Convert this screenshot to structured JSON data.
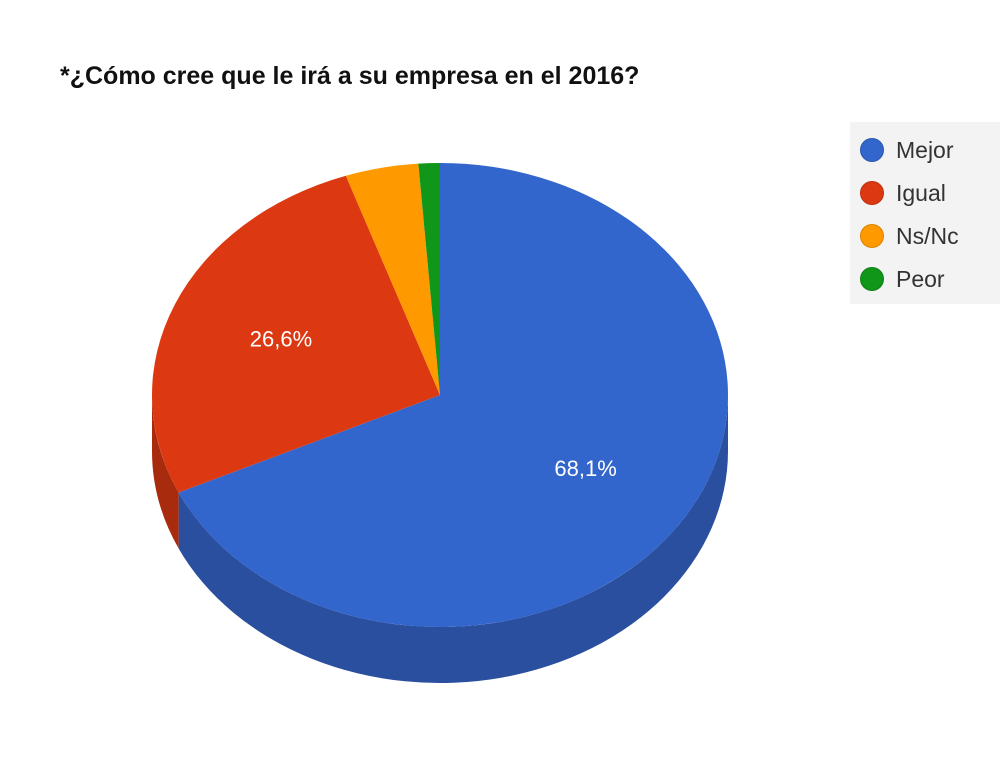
{
  "chart_data": {
    "type": "pie",
    "title": "*¿Cómo cree que le irá a su empresa en el 2016?",
    "categories": [
      "Mejor",
      "Igual",
      "Ns/Nc",
      "Peor"
    ],
    "values": [
      68.1,
      26.6,
      4.1,
      1.2
    ],
    "data_labels": [
      "68,1%",
      "26,6%",
      "",
      ""
    ],
    "colors": [
      "#3366cc",
      "#dc3912",
      "#ff9900",
      "#109618"
    ],
    "side_colors": [
      "#2a4f9e",
      "#a92b0e",
      "#c77700",
      "#0b6a10"
    ],
    "legend_position": "right",
    "is_3d": true
  }
}
